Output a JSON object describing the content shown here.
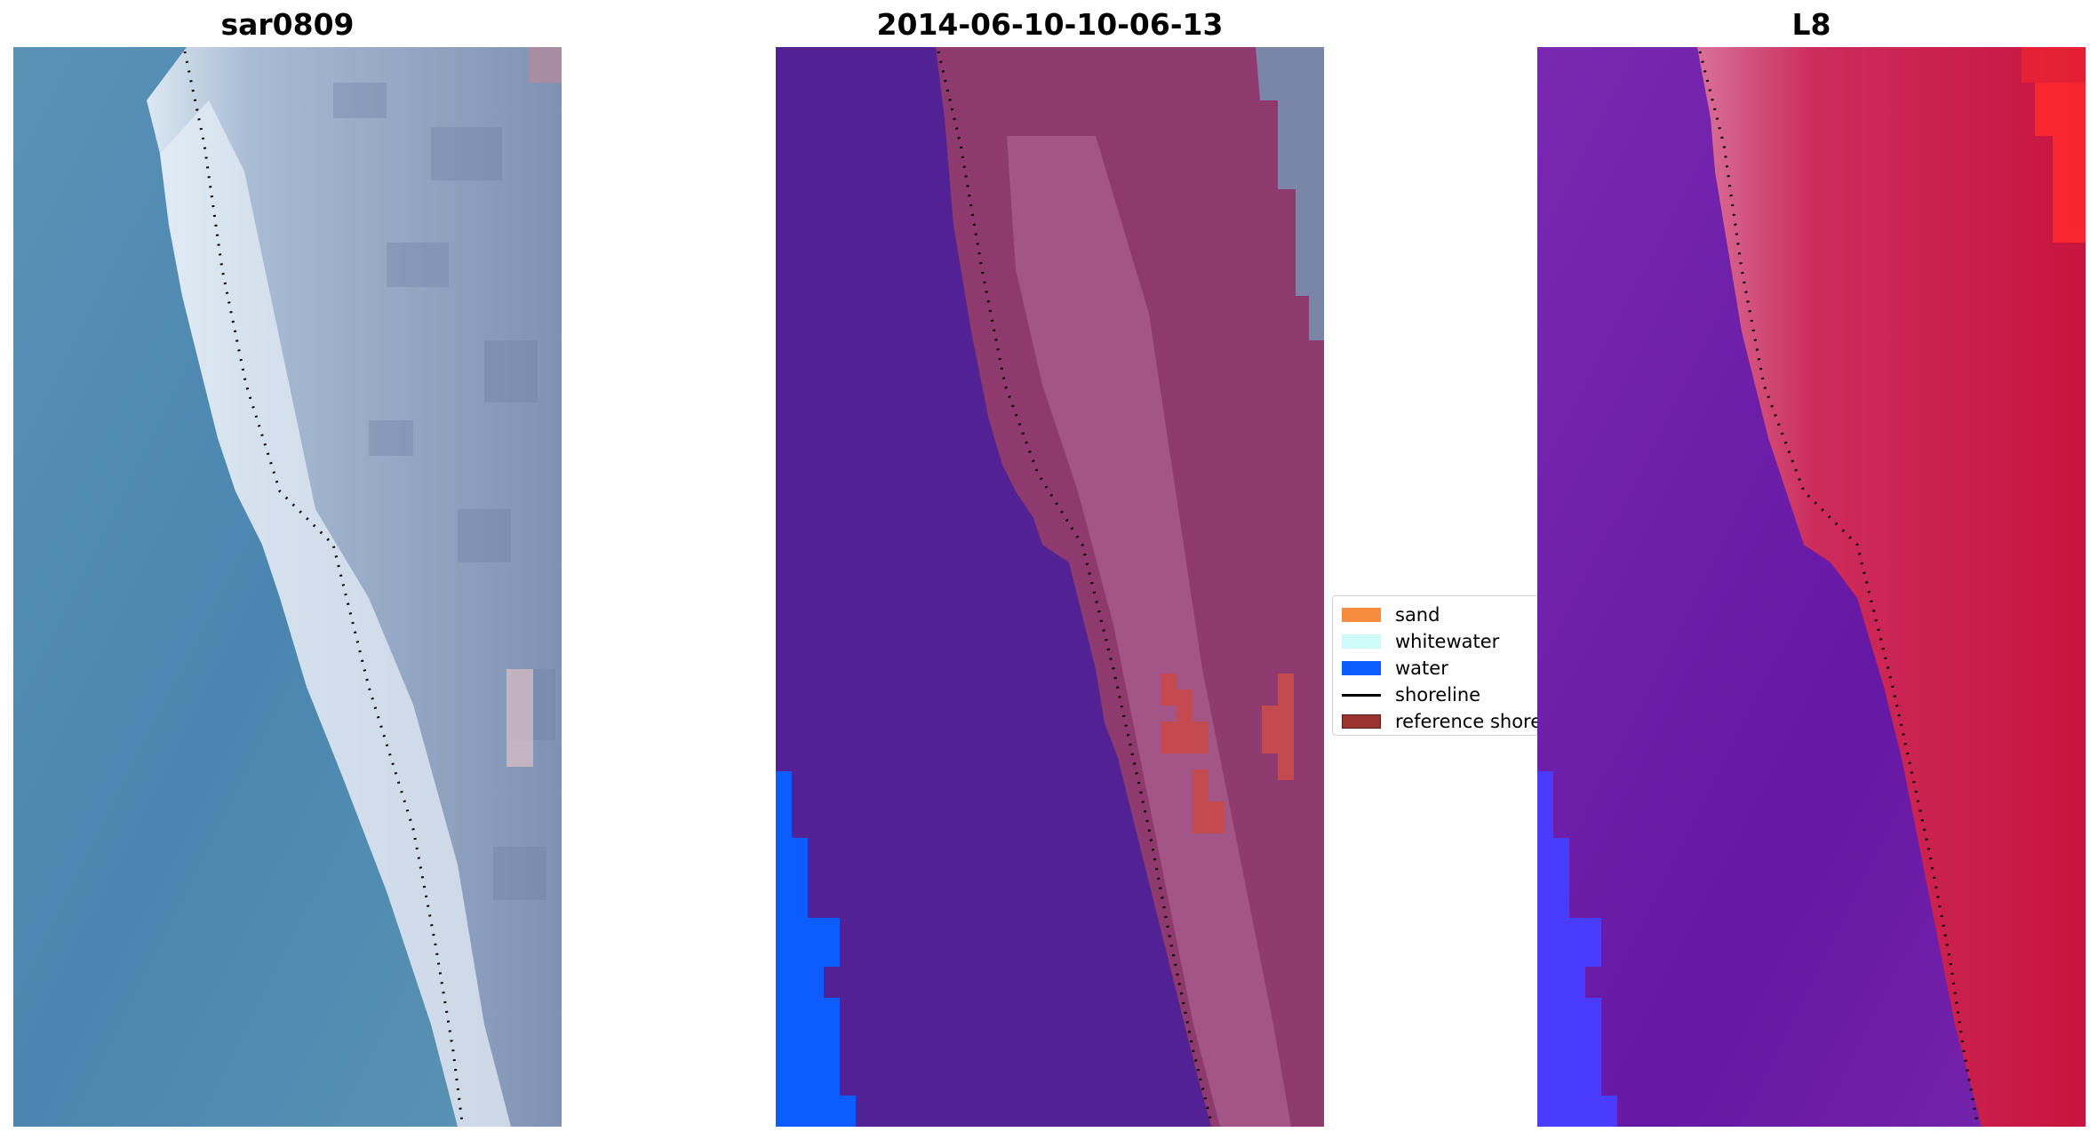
{
  "panels": [
    {
      "title": "sar0809"
    },
    {
      "title": "2014-06-10-10-06-13"
    },
    {
      "title": "L8"
    }
  ],
  "legend": {
    "items": [
      {
        "label": "sand",
        "color": "#f58b3c",
        "kind": "patch"
      },
      {
        "label": "whitewater",
        "color": "#cffafa",
        "kind": "patch"
      },
      {
        "label": "water",
        "color": "#0d5cff",
        "kind": "patch"
      },
      {
        "label": "shoreline",
        "color": "#000000",
        "kind": "line"
      },
      {
        "label": "reference shoreline",
        "color": "#9b3431",
        "kind": "patch"
      }
    ]
  },
  "colors": {
    "sea_rgb": "#4a88b2",
    "land_rgb": "#8a9cbc",
    "class_background": "#522294",
    "class_land": "#8e3a6f",
    "class_water": "#0d5cff",
    "class_reference": "#c44a50",
    "l8_sea": "#6a1fa8",
    "l8_land": "#c81a4a",
    "l8_water": "#4a3cff"
  }
}
